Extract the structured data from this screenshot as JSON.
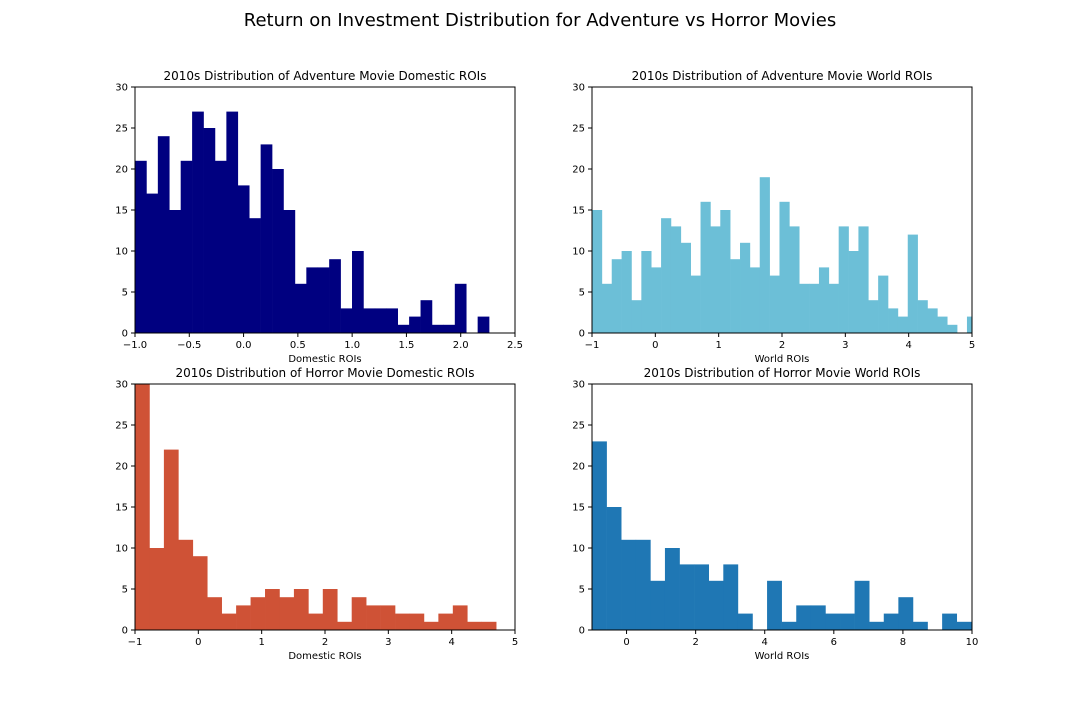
{
  "figure": {
    "title": "Return on Investment Distribution for Adventure vs Horror Movies"
  },
  "chart_data": [
    {
      "type": "bar",
      "subtype": "histogram",
      "title": "2010s Distribution of Adventure Movie Domestic ROIs",
      "xlabel": "Domestic ROIs",
      "ylabel": "",
      "xlim": [
        -1.0,
        2.5
      ],
      "ylim": [
        0,
        30
      ],
      "xticks": [
        -1.0,
        -0.5,
        0.0,
        0.5,
        1.0,
        1.5,
        2.0,
        2.5
      ],
      "xtick_labels": [
        "−1.0",
        "−0.5",
        "0.0",
        "0.5",
        "1.0",
        "1.5",
        "2.0",
        "2.5"
      ],
      "yticks": [
        0,
        5,
        10,
        15,
        20,
        25,
        30
      ],
      "ytick_labels": [
        "0",
        "5",
        "10",
        "15",
        "20",
        "25",
        "30"
      ],
      "bin_start": -1.0,
      "bin_width": 0.1052,
      "values": [
        21,
        17,
        24,
        15,
        21,
        27,
        25,
        21,
        27,
        18,
        14,
        23,
        20,
        15,
        6,
        8,
        8,
        9,
        3,
        10,
        3,
        3,
        3,
        1,
        2,
        4,
        1,
        1,
        6,
        0,
        2
      ],
      "color": "#000080",
      "grid": false
    },
    {
      "type": "bar",
      "subtype": "histogram",
      "title": "2010s Distribution of Adventure Movie World ROIs",
      "xlabel": "World ROIs",
      "ylabel": "",
      "xlim": [
        -1,
        5
      ],
      "ylim": [
        0,
        30
      ],
      "xticks": [
        -1,
        0,
        1,
        2,
        3,
        4,
        5
      ],
      "xtick_labels": [
        "−1",
        "0",
        "1",
        "2",
        "3",
        "4",
        "5"
      ],
      "yticks": [
        0,
        5,
        10,
        15,
        20,
        25,
        30
      ],
      "ytick_labels": [
        "0",
        "5",
        "10",
        "15",
        "20",
        "25",
        "30"
      ],
      "bin_start": -1.0,
      "bin_width": 0.1558,
      "values": [
        15,
        6,
        9,
        10,
        4,
        10,
        8,
        14,
        13,
        11,
        7,
        16,
        13,
        15,
        9,
        11,
        8,
        19,
        7,
        16,
        13,
        6,
        6,
        8,
        6,
        13,
        10,
        13,
        4,
        7,
        3,
        2,
        12,
        4,
        3,
        2,
        1,
        0,
        2
      ],
      "color": "#6cbfd7",
      "grid": false
    },
    {
      "type": "bar",
      "subtype": "histogram",
      "title": "2010s Distribution of Horror Movie Domestic ROIs",
      "xlabel": "Domestic ROIs",
      "ylabel": "",
      "xlim": [
        -1,
        5
      ],
      "ylim": [
        0,
        30
      ],
      "xticks": [
        -1,
        0,
        1,
        2,
        3,
        4,
        5
      ],
      "xtick_labels": [
        "−1",
        "0",
        "1",
        "2",
        "3",
        "4",
        "5"
      ],
      "yticks": [
        0,
        5,
        10,
        15,
        20,
        25,
        30
      ],
      "ytick_labels": [
        "0",
        "5",
        "10",
        "15",
        "20",
        "25",
        "30"
      ],
      "bin_start": -1.0,
      "bin_width": 0.2281,
      "values": [
        30,
        10,
        22,
        11,
        9,
        4,
        2,
        3,
        4,
        5,
        4,
        5,
        2,
        5,
        1,
        4,
        3,
        3,
        2,
        2,
        1,
        2,
        3,
        1,
        1
      ],
      "color": "#cf5236",
      "grid": false
    },
    {
      "type": "bar",
      "subtype": "histogram",
      "title": "2010s Distribution of Horror Movie World ROIs",
      "xlabel": "World ROIs",
      "ylabel": "",
      "xlim": [
        -1,
        10
      ],
      "ylim": [
        0,
        30
      ],
      "xticks": [
        0,
        2,
        4,
        6,
        8,
        10
      ],
      "xtick_labels": [
        "0",
        "2",
        "4",
        "6",
        "8",
        "10"
      ],
      "yticks": [
        0,
        5,
        10,
        15,
        20,
        25,
        30
      ],
      "ytick_labels": [
        "0",
        "5",
        "10",
        "15",
        "20",
        "25",
        "30"
      ],
      "bin_start": -1.0,
      "bin_width": 0.4223,
      "values": [
        23,
        15,
        11,
        11,
        6,
        10,
        8,
        8,
        6,
        8,
        2,
        0,
        6,
        1,
        3,
        3,
        2,
        2,
        6,
        1,
        2,
        4,
        1,
        0,
        2,
        1
      ],
      "color": "#1f77b4",
      "grid": false
    }
  ]
}
